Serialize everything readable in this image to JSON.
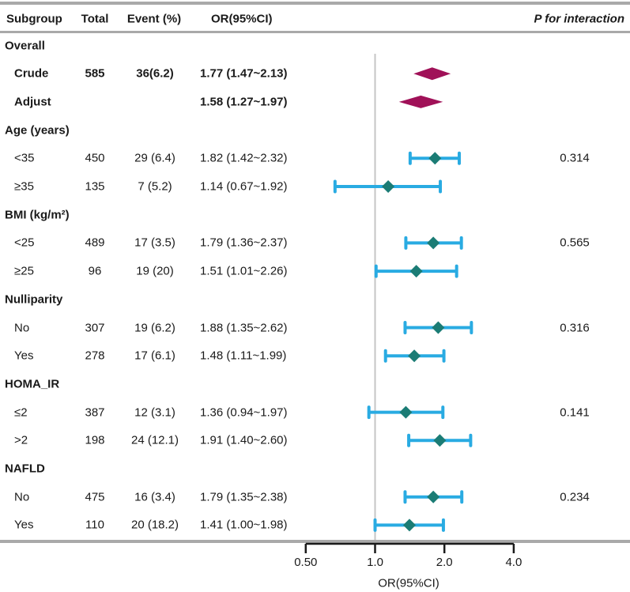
{
  "header": {
    "subgroup": "Subgroup",
    "total": "Total",
    "event": "Event (%)",
    "or": "OR(95%CI)",
    "p_interaction": "P for interaction"
  },
  "chart_data": {
    "type": "forest",
    "x_scale": "log2",
    "xlabel": "OR(95%CI)",
    "x_ticks": [
      {
        "label": "0.50",
        "value": 0.5
      },
      {
        "label": "1.0",
        "value": 1.0
      },
      {
        "label": "2.0",
        "value": 2.0
      },
      {
        "label": "4.0",
        "value": 4.0
      }
    ],
    "xlim": [
      0.5,
      4.0
    ],
    "reference_line": 1.0,
    "legend": "none",
    "grid": "off",
    "rows": [
      {
        "type": "section",
        "label": "Overall"
      },
      {
        "type": "entry",
        "bold": true,
        "marker": "summary",
        "label": "Crude",
        "total": "585",
        "event": "36(6.2)",
        "or_text": "1.77 (1.47~2.13)",
        "est": 1.77,
        "lo": 1.47,
        "hi": 2.13,
        "p": ""
      },
      {
        "type": "entry",
        "bold": true,
        "marker": "summary",
        "label": "Adjust",
        "total": "",
        "event": "",
        "or_text": "1.58 (1.27~1.97)",
        "est": 1.58,
        "lo": 1.27,
        "hi": 1.97,
        "p": ""
      },
      {
        "type": "section",
        "label": "Age (years)"
      },
      {
        "type": "entry",
        "bold": false,
        "marker": "ci",
        "label": "<35",
        "total": "450",
        "event": "29 (6.4)",
        "or_text": "1.82 (1.42~2.32)",
        "est": 1.82,
        "lo": 1.42,
        "hi": 2.32,
        "p": "0.314"
      },
      {
        "type": "entry",
        "bold": false,
        "marker": "ci",
        "label": "≥35",
        "total": "135",
        "event": "7 (5.2)",
        "or_text": "1.14 (0.67~1.92)",
        "est": 1.14,
        "lo": 0.67,
        "hi": 1.92,
        "p": ""
      },
      {
        "type": "section",
        "label": "BMI (kg/m²)"
      },
      {
        "type": "entry",
        "bold": false,
        "marker": "ci",
        "label": "<25",
        "total": "489",
        "event": "17 (3.5)",
        "or_text": "1.79 (1.36~2.37)",
        "est": 1.79,
        "lo": 1.36,
        "hi": 2.37,
        "p": "0.565"
      },
      {
        "type": "entry",
        "bold": false,
        "marker": "ci",
        "label": "≥25",
        "total": "96",
        "event": "19 (20)",
        "or_text": "1.51 (1.01~2.26)",
        "est": 1.51,
        "lo": 1.01,
        "hi": 2.26,
        "p": ""
      },
      {
        "type": "section",
        "label": "Nulliparity"
      },
      {
        "type": "entry",
        "bold": false,
        "marker": "ci",
        "label": "No",
        "total": "307",
        "event": "19 (6.2)",
        "or_text": "1.88 (1.35~2.62)",
        "est": 1.88,
        "lo": 1.35,
        "hi": 2.62,
        "p": "0.316"
      },
      {
        "type": "entry",
        "bold": false,
        "marker": "ci",
        "label": "Yes",
        "total": "278",
        "event": "17 (6.1)",
        "or_text": "1.48 (1.11~1.99)",
        "est": 1.48,
        "lo": 1.11,
        "hi": 1.99,
        "p": ""
      },
      {
        "type": "section",
        "label": "HOMA_IR"
      },
      {
        "type": "entry",
        "bold": false,
        "marker": "ci",
        "label": "≤2",
        "total": "387",
        "event": "12 (3.1)",
        "or_text": "1.36 (0.94~1.97)",
        "est": 1.36,
        "lo": 0.94,
        "hi": 1.97,
        "p": "0.141"
      },
      {
        "type": "entry",
        "bold": false,
        "marker": "ci",
        "label": ">2",
        "total": "198",
        "event": "24 (12.1)",
        "or_text": "1.91 (1.40~2.60)",
        "est": 1.91,
        "lo": 1.4,
        "hi": 2.6,
        "p": ""
      },
      {
        "type": "section",
        "label": "NAFLD"
      },
      {
        "type": "entry",
        "bold": false,
        "marker": "ci",
        "label": "No",
        "total": "475",
        "event": "16 (3.4)",
        "or_text": "1.79 (1.35~2.38)",
        "est": 1.79,
        "lo": 1.35,
        "hi": 2.38,
        "p": "0.234"
      },
      {
        "type": "entry",
        "bold": false,
        "marker": "ci",
        "label": "Yes",
        "total": "110",
        "event": "20 (18.2)",
        "or_text": "1.41 (1.00~1.98)",
        "est": 1.41,
        "lo": 1.0,
        "hi": 1.98,
        "p": ""
      }
    ],
    "colors": {
      "ci_line": "#29abe2",
      "point_marker": "#1b7c75",
      "summary_diamond": "#a01158",
      "reference_line": "#c6c6c6",
      "rule": "#a9a9a9",
      "axis": "#1a1a1a",
      "text": "#1a1a1a"
    }
  }
}
